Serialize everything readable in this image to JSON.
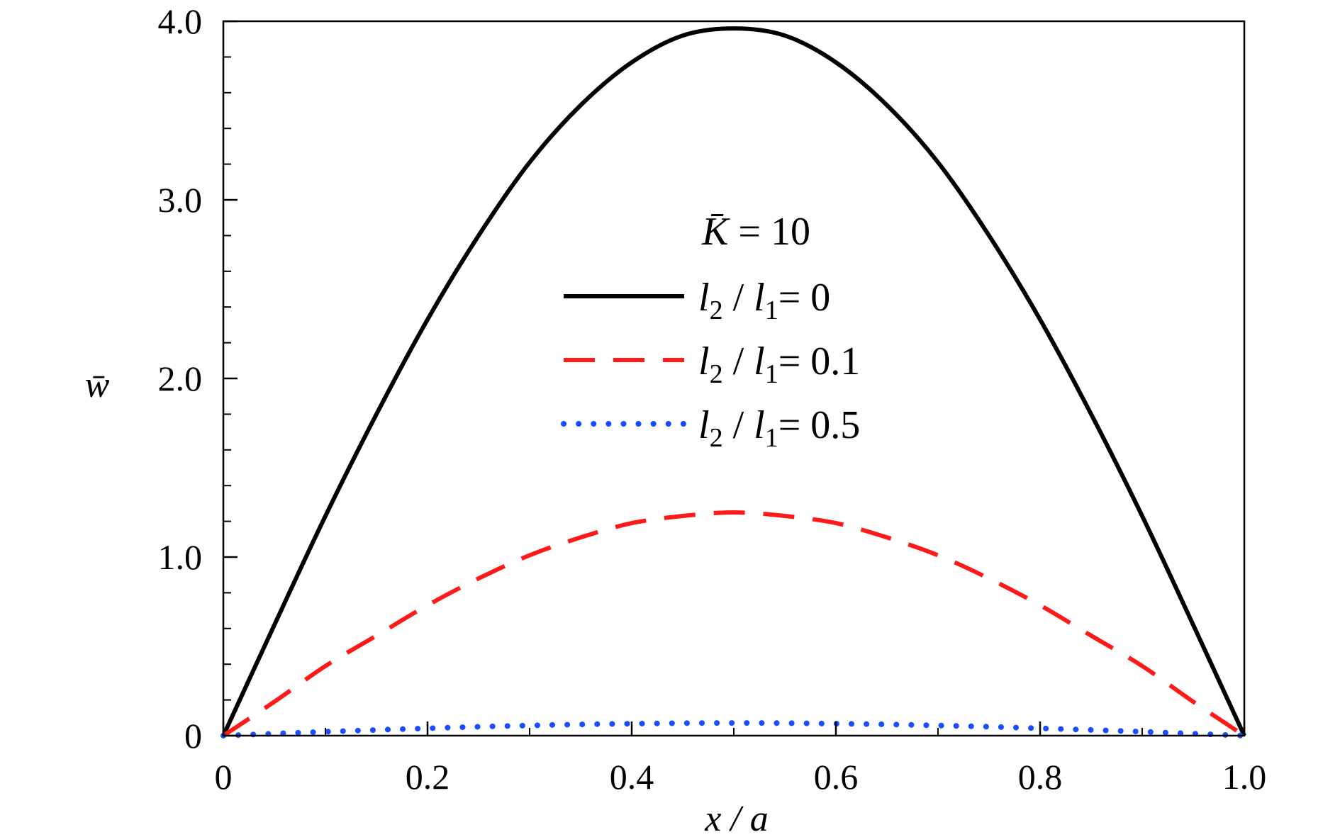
{
  "chart_data": {
    "type": "line",
    "xlabel": "x / a",
    "ylabel": "w̄",
    "xlim": [
      0,
      1.0
    ],
    "ylim": [
      0,
      4.0
    ],
    "grid": false,
    "legend_position": "center",
    "xticks": [
      {
        "value": 0,
        "label": "0"
      },
      {
        "value": 0.2,
        "label": "0.2"
      },
      {
        "value": 0.4,
        "label": "0.4"
      },
      {
        "value": 0.6,
        "label": "0.6"
      },
      {
        "value": 0.8,
        "label": "0.8"
      },
      {
        "value": 1.0,
        "label": "1.0"
      }
    ],
    "yticks": [
      {
        "value": 0,
        "label": "0"
      },
      {
        "value": 1.0,
        "label": "1.0"
      },
      {
        "value": 2.0,
        "label": "2.0"
      },
      {
        "value": 3.0,
        "label": "3.0"
      },
      {
        "value": 4.0,
        "label": "4.0"
      }
    ],
    "annotation": {
      "symbol": "K̄",
      "text": " = 10"
    },
    "x": [
      0,
      0.05,
      0.1,
      0.15,
      0.2,
      0.25,
      0.3,
      0.35,
      0.4,
      0.45,
      0.5,
      0.55,
      0.6,
      0.65,
      0.7,
      0.75,
      0.8,
      0.85,
      0.9,
      0.95,
      1.0
    ],
    "series": [
      {
        "name": "l2 / l1 = 0",
        "legend_num": "2",
        "legend_den": "1",
        "legend_value": "0",
        "color": "#000000",
        "style": "solid",
        "values": [
          0,
          0.62,
          1.23,
          1.8,
          2.33,
          2.8,
          3.21,
          3.53,
          3.77,
          3.92,
          3.96,
          3.92,
          3.77,
          3.53,
          3.21,
          2.8,
          2.33,
          1.8,
          1.23,
          0.62,
          0
        ]
      },
      {
        "name": "l2 / l1 = 0.1",
        "legend_num": "2",
        "legend_den": "1",
        "legend_value": "0.1",
        "color": "#ff1a1a",
        "style": "dashed",
        "values": [
          0,
          0.19,
          0.39,
          0.56,
          0.73,
          0.88,
          1.01,
          1.11,
          1.19,
          1.23,
          1.25,
          1.23,
          1.19,
          1.11,
          1.01,
          0.88,
          0.73,
          0.56,
          0.39,
          0.19,
          0
        ]
      },
      {
        "name": "l2 / l1 = 0.5",
        "legend_num": "2",
        "legend_den": "1",
        "legend_value": "0.5",
        "color": "#1a4dff",
        "style": "dotted",
        "values": [
          0,
          0.011,
          0.022,
          0.032,
          0.041,
          0.05,
          0.057,
          0.063,
          0.067,
          0.07,
          0.071,
          0.07,
          0.067,
          0.063,
          0.057,
          0.05,
          0.041,
          0.032,
          0.022,
          0.011,
          0
        ]
      }
    ]
  }
}
